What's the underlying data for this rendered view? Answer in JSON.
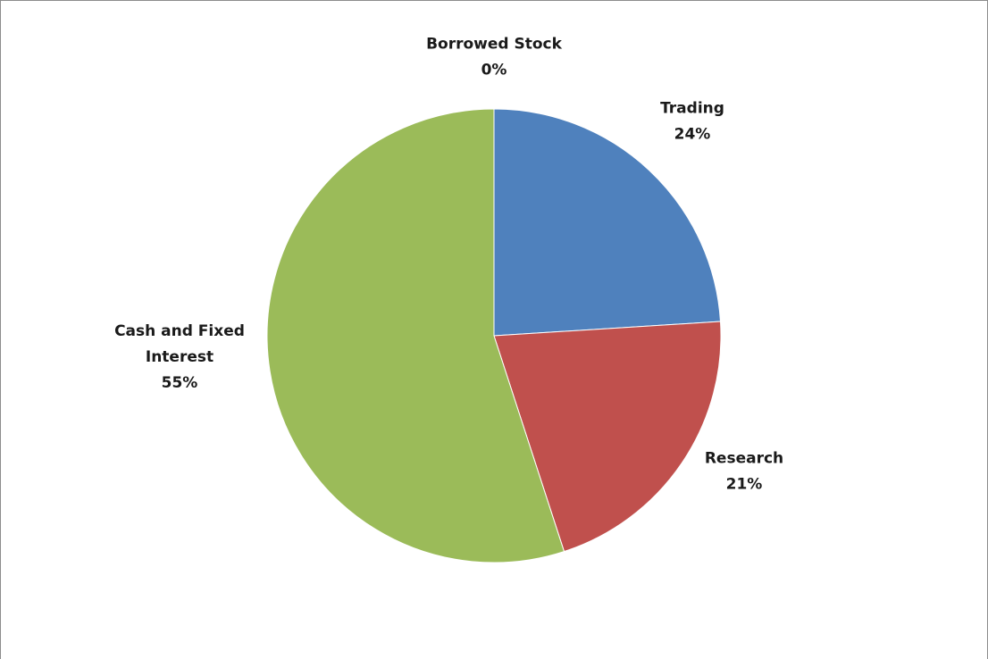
{
  "chart_data": {
    "type": "pie",
    "title": "",
    "start_angle_deg": 0,
    "direction": "clockwise",
    "slices": [
      {
        "name": "Trading",
        "value": 24,
        "label": "24%",
        "color": "#4F81BD"
      },
      {
        "name": "Research",
        "value": 21,
        "label": "21%",
        "color": "#C0504D"
      },
      {
        "name": "Cash and Fixed Interest",
        "value": 55,
        "label": "55%",
        "color": "#9BBB59"
      },
      {
        "name": "Borrowed Stock",
        "value": 0,
        "label": "0%",
        "color": "#8064A2"
      }
    ],
    "data_labels": [
      {
        "lines": [
          "Trading",
          "24%"
        ]
      },
      {
        "lines": [
          "Research",
          "21%"
        ]
      },
      {
        "lines": [
          "Cash and Fixed",
          "Interest",
          "55%"
        ]
      },
      {
        "lines": [
          "Borrowed Stock",
          "0%"
        ]
      }
    ],
    "legend": "none"
  }
}
